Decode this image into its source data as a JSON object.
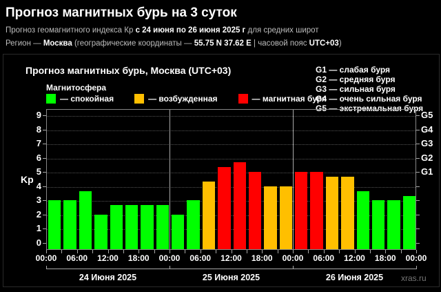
{
  "header": {
    "title": "Прогноз магнитных бурь на 3 суток",
    "line1_prefix": "Прогноз геомагнитного индекса Кр ",
    "line1_bold": "с 24 июня по 26 июня 2025 г",
    "line1_suffix": " для средних широт",
    "line2_prefix": "Регион — ",
    "line2_city": "Москва",
    "line2_mid": " (географические координаты — ",
    "line2_coords": "55.75 N 37.62 E",
    "line2_tz_label": " | часовой пояс ",
    "line2_tz": "UTC+03",
    "line2_end": ")"
  },
  "chart_data": {
    "type": "bar",
    "title": "Прогноз магнитных бурь, Москва (UTC+03)",
    "ylabel": "Kp",
    "xlabel": "",
    "ylim": [
      0,
      9
    ],
    "yticks": [
      "0",
      "1",
      "2",
      "3",
      "4",
      "5",
      "6",
      "7",
      "8",
      "9"
    ],
    "right_ticks": [
      {
        "label": "G1",
        "kp": 5
      },
      {
        "label": "G2",
        "kp": 6
      },
      {
        "label": "G3",
        "kp": 7
      },
      {
        "label": "G4",
        "kp": 8
      },
      {
        "label": "G5",
        "kp": 9
      }
    ],
    "xtick_labels": [
      "00:00",
      "06:00",
      "12:00",
      "18:00",
      "00:00",
      "06:00",
      "12:00",
      "18:00",
      "00:00",
      "06:00",
      "12:00",
      "18:00",
      "00:00"
    ],
    "days": [
      "24 Июня 2025",
      "25 Июня 2025",
      "26 Июня 2025"
    ],
    "categories": [
      "24 00-03",
      "24 03-06",
      "24 06-09",
      "24 09-12",
      "24 12-15",
      "24 15-18",
      "24 18-21",
      "24 21-24",
      "25 00-03",
      "25 03-06",
      "25 06-09",
      "25 09-12",
      "25 12-15",
      "25 15-18",
      "25 18-21",
      "25 21-24",
      "26 00-03",
      "26 03-06",
      "26 06-09",
      "26 09-12",
      "26 12-15",
      "26 15-18",
      "26 18-21",
      "26 21-24"
    ],
    "values": [
      3.0,
      3.0,
      3.67,
      2.0,
      2.67,
      2.67,
      2.67,
      2.67,
      2.0,
      3.0,
      4.33,
      5.33,
      5.67,
      5.0,
      4.0,
      4.0,
      5.0,
      5.0,
      4.67,
      4.67,
      3.67,
      3.0,
      3.0,
      3.33
    ],
    "status": [
      "quiet",
      "quiet",
      "quiet",
      "quiet",
      "quiet",
      "quiet",
      "quiet",
      "quiet",
      "quiet",
      "quiet",
      "active",
      "storm",
      "storm",
      "storm",
      "active",
      "active",
      "storm",
      "storm",
      "active",
      "active",
      "quiet",
      "quiet",
      "quiet",
      "quiet"
    ],
    "grid": true,
    "legend_position": "top"
  },
  "legend": {
    "heading": "Магнитосфера",
    "items": [
      {
        "label": "— спокойная",
        "color": "#00ff00",
        "key": "quiet"
      },
      {
        "label": "— возбужденная",
        "color": "#ffbf00",
        "key": "active"
      },
      {
        "label": "— магнитная буря",
        "color": "#ff0000",
        "key": "storm"
      }
    ]
  },
  "g_scale": [
    "G1 — слабая буря",
    "G2 — средняя буря",
    "G3 — сильная буря",
    "G4 — очень сильная буря",
    "G5 — экстремальная буря"
  ],
  "watermark": "xras.ru"
}
